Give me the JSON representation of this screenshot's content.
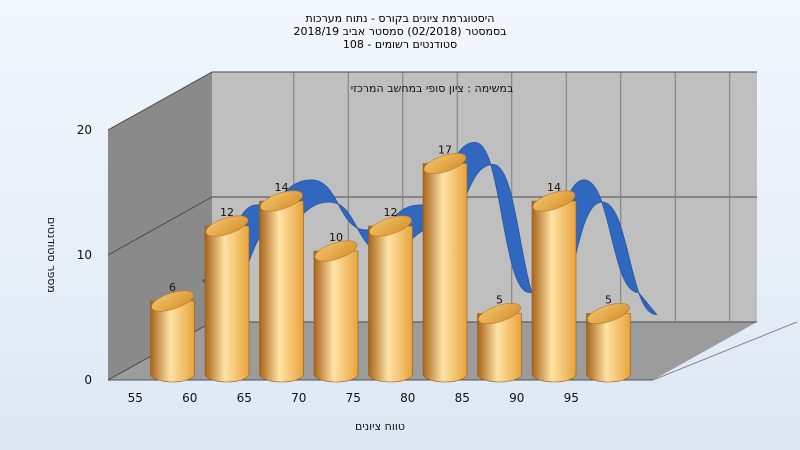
{
  "titles": {
    "line1": "היסטוגרמת ציונים בקורס - נתוח מערכות",
    "line2": "בסמסטר  (02/2018)  סמסטר אביב 2018/19",
    "line3": "סטודנטים רשומים - 108"
  },
  "chart_data": {
    "type": "bar",
    "subtitle": "במשימה : ציון סופי במחשב המרכזי",
    "categories": [
      "55",
      "60",
      "65",
      "70",
      "75",
      "80",
      "85",
      "90",
      "95"
    ],
    "bar_tick_positions": [
      57.5,
      62.5,
      67.5,
      72.5,
      77.5,
      82.5,
      87.5,
      92.5,
      97.5
    ],
    "values": [
      6,
      12,
      14,
      10,
      12,
      17,
      5,
      14,
      5
    ],
    "data_labels": [
      "6",
      "12",
      "14",
      "10",
      "12",
      "17",
      "5",
      "14",
      "5"
    ],
    "xlabel": "טווח ציונים",
    "ylabel": "מספר סטודנטים",
    "yticks": [
      "0",
      "10",
      "20"
    ],
    "ylim": [
      0,
      20
    ],
    "grid": true,
    "colors": {
      "bar": "#e8a33a",
      "bar_light": "#ffe3a6",
      "bar_dark": "#a8641a",
      "trend": "#3068c0",
      "back_wall": "#bfbfbf",
      "side_wall": "#8a8a8a",
      "floor": "#9c9c9c"
    }
  }
}
